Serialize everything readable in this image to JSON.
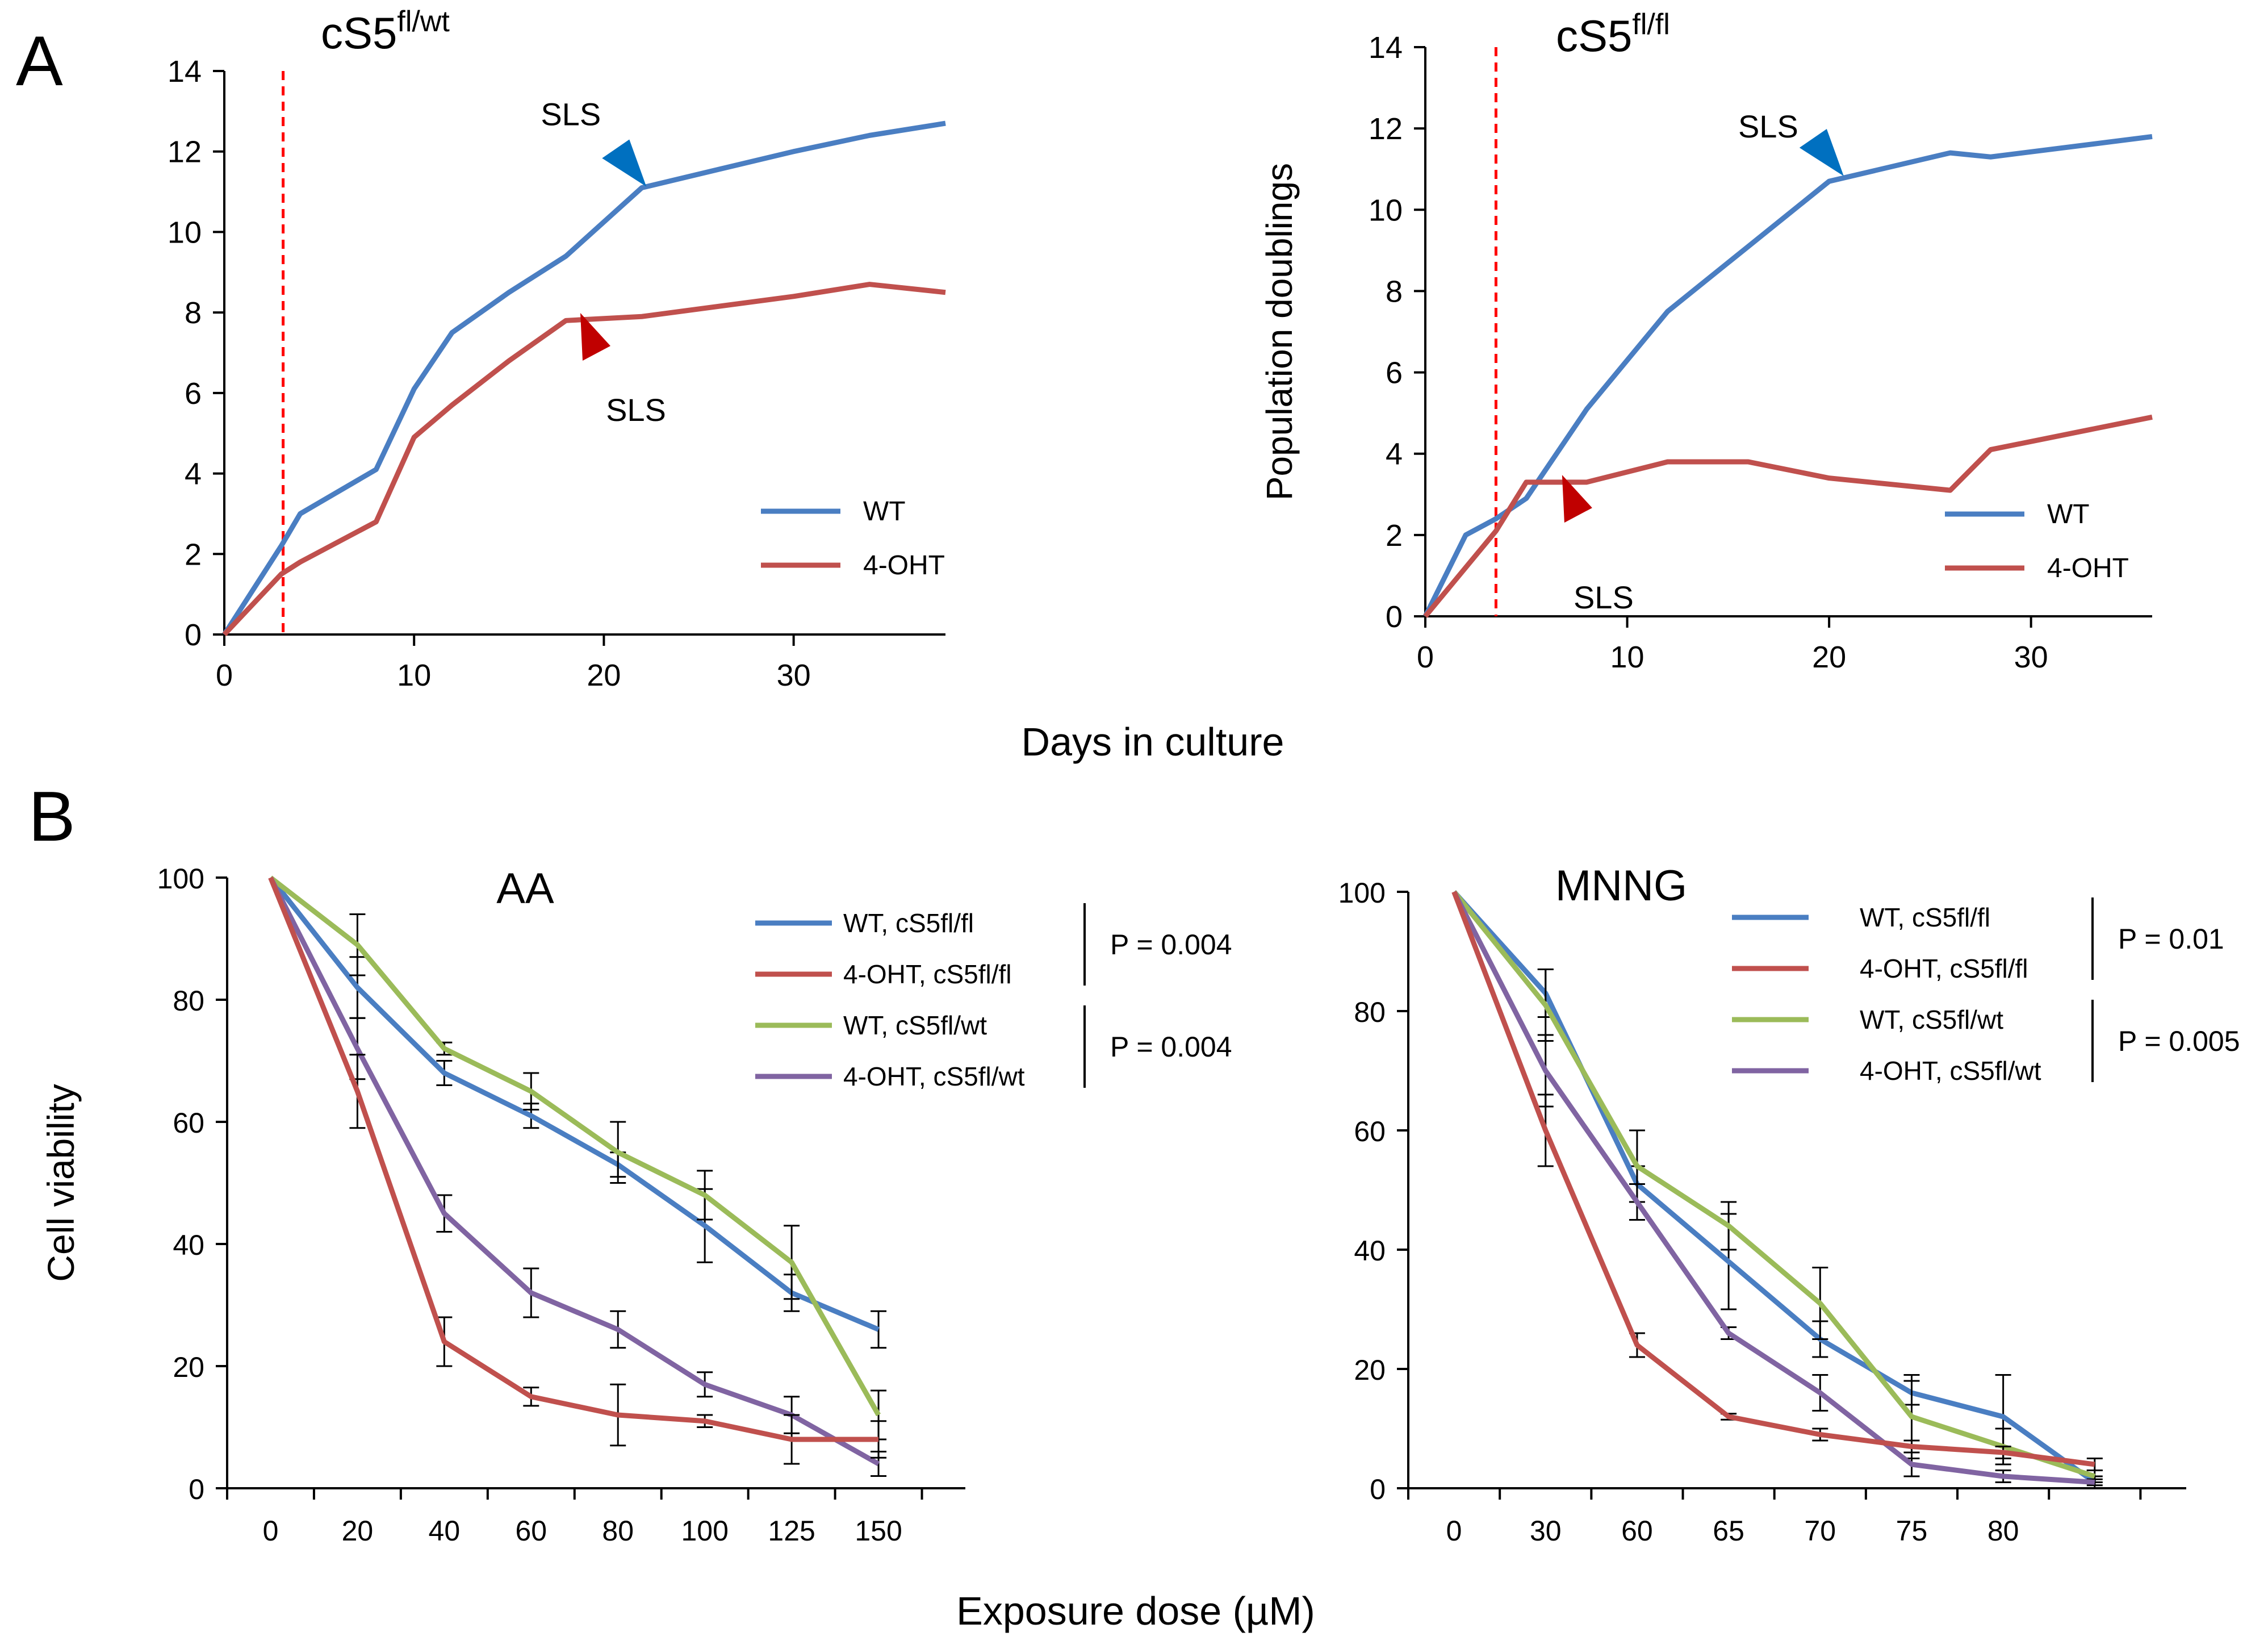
{
  "panel_labels": [
    "A",
    "B"
  ],
  "shared_labels": {
    "top_xlabel": "Days in culture",
    "bottom_xlabel": "Exposure dose (µM)",
    "top_ylabel": "Population doublings",
    "bottom_ylabel": "Cell viability"
  },
  "colors": {
    "wt": "#4A7EC2",
    "oht": "#C0504D",
    "wt_wt": "#9BBB59",
    "oht_wt": "#8064A2",
    "vline": "#FF0000",
    "arrow_blue": "#0070C0",
    "arrow_red": "#C00000"
  },
  "chart_data": [
    {
      "id": "A1",
      "type": "line",
      "title_base": "cS5",
      "title_sup": "fl/wt",
      "xlim": [
        0,
        38
      ],
      "ylim": [
        0,
        14
      ],
      "xticks": [
        "0",
        "10",
        "20",
        "30"
      ],
      "xtick_values": [
        0,
        10,
        20,
        30
      ],
      "yticks": [
        "0",
        "2",
        "4",
        "6",
        "8",
        "10",
        "12",
        "14"
      ],
      "vline_x": 3.1,
      "series": [
        {
          "name": "WT",
          "color": "#4A7EC2",
          "x": [
            0,
            3,
            4,
            8,
            10,
            12,
            15,
            18,
            22,
            30,
            34,
            38
          ],
          "y": [
            0,
            2.2,
            3,
            4.1,
            6.1,
            7.5,
            8.5,
            9.4,
            11.1,
            12,
            12.4,
            12.7
          ]
        },
        {
          "name": "4-OHT",
          "color": "#C0504D",
          "x": [
            0,
            3,
            4,
            8,
            10,
            12,
            15,
            18,
            22,
            30,
            34,
            38
          ],
          "y": [
            0,
            1.5,
            1.8,
            2.8,
            4.9,
            5.7,
            6.8,
            7.8,
            7.9,
            8.4,
            8.7,
            8.5
          ]
        }
      ],
      "annotations": [
        {
          "text": "SLS",
          "color": "#0070C0",
          "x": 22,
          "y": 11.1
        },
        {
          "text": "SLS",
          "color": "#C00000",
          "x": 19,
          "y": 7
        }
      ]
    },
    {
      "id": "A2",
      "type": "line",
      "title_base": "cS5",
      "title_sup": "fl/fl",
      "xlim": [
        0,
        36
      ],
      "ylim": [
        0,
        14
      ],
      "xticks": [
        "0",
        "10",
        "20",
        "30"
      ],
      "xtick_values": [
        0,
        10,
        20,
        30
      ],
      "yticks": [
        "0",
        "2",
        "4",
        "6",
        "8",
        "10",
        "12",
        "14"
      ],
      "ylabel": "Population doublings",
      "vline_x": 3.5,
      "series": [
        {
          "name": "WT",
          "color": "#4A7EC2",
          "x": [
            0,
            2,
            3.5,
            5,
            8,
            12,
            16,
            20,
            26,
            28,
            36
          ],
          "y": [
            0,
            2,
            2.4,
            2.9,
            5.1,
            7.5,
            9.1,
            10.7,
            11.4,
            11.3,
            11.8
          ]
        },
        {
          "name": "4-OHT",
          "color": "#C0504D",
          "x": [
            0,
            2,
            3.5,
            5,
            8,
            12,
            16,
            20,
            26,
            28,
            36
          ],
          "y": [
            0,
            1.2,
            2.1,
            3.3,
            3.3,
            3.8,
            3.8,
            3.4,
            3.1,
            4.1,
            4.9
          ]
        }
      ],
      "annotations": [
        {
          "text": "SLS",
          "color": "#0070C0",
          "x": 20.5,
          "y": 10.8
        },
        {
          "text": "SLS",
          "color": "#C00000",
          "x": 7,
          "y": 2.5
        }
      ]
    },
    {
      "id": "B1",
      "type": "line",
      "title": "AA",
      "categories": [
        "0",
        "20",
        "40",
        "60",
        "80",
        "100",
        "125",
        "150"
      ],
      "ylim": [
        0,
        100
      ],
      "yticks": [
        "0",
        "20",
        "40",
        "60",
        "80",
        "100"
      ],
      "ylabel": "Cell viability",
      "series": [
        {
          "name": "WT,  cS5fl/fl",
          "color": "#4A7EC2",
          "values": [
            100,
            82,
            68,
            61,
            53,
            43,
            32,
            26
          ],
          "err": [
            0,
            5,
            2,
            2,
            2,
            6,
            3,
            3
          ]
        },
        {
          "name": "4-OHT,  cS5fl/fl",
          "color": "#C0504D",
          "values": [
            100,
            65,
            24,
            15,
            12,
            11,
            8,
            8
          ],
          "err": [
            0,
            6,
            4,
            1.5,
            5,
            1,
            4,
            3
          ]
        },
        {
          "name": "WT,  cS5fl/wt",
          "color": "#9BBB59",
          "values": [
            100,
            89,
            72,
            65,
            55,
            48,
            37,
            12
          ],
          "err": [
            0,
            5,
            1,
            3,
            5,
            4,
            6,
            4
          ]
        },
        {
          "name": "4-OHT,  cS5fl/wt",
          "color": "#8064A2",
          "values": [
            100,
            72,
            45,
            32,
            26,
            17,
            12,
            4
          ],
          "err": [
            0,
            5,
            3,
            4,
            3,
            2,
            3,
            2
          ]
        }
      ],
      "pvalues": [
        "P = 0.004",
        "P = 0.004"
      ]
    },
    {
      "id": "B2",
      "type": "line",
      "title": "MNNG",
      "categories": [
        "0",
        "30",
        "60",
        "65",
        "70",
        "75",
        "80",
        ""
      ],
      "ylim": [
        0,
        100
      ],
      "yticks": [
        "0",
        "20",
        "40",
        "60",
        "80",
        "100"
      ],
      "series": [
        {
          "name": "WT,  cS5fl/fl",
          "color": "#4A7EC2",
          "values": [
            100,
            83,
            51,
            38,
            25,
            16,
            12,
            1
          ],
          "err": [
            0,
            4,
            3,
            8,
            3,
            2,
            7,
            1
          ]
        },
        {
          "name": "4-OHT,  cS5fl/fl",
          "color": "#C0504D",
          "values": [
            100,
            60,
            24,
            12,
            9,
            7,
            6,
            4
          ],
          "err": [
            0,
            6,
            2,
            0.5,
            1,
            1,
            1,
            1
          ]
        },
        {
          "name": "WT,  cS5fl/wt",
          "color": "#9BBB59",
          "values": [
            100,
            81,
            54,
            44,
            31,
            12,
            7,
            2
          ],
          "err": [
            0,
            6,
            6,
            4,
            6,
            7,
            3,
            1
          ]
        },
        {
          "name": "4-OHT,  cS5fl/wt",
          "color": "#8064A2",
          "values": [
            100,
            70,
            48,
            26,
            16,
            4,
            2,
            1
          ],
          "err": [
            0,
            6,
            3,
            1,
            3,
            2,
            1,
            0.5
          ]
        }
      ],
      "pvalues": [
        "P = 0.01",
        "P = 0.005"
      ]
    }
  ]
}
